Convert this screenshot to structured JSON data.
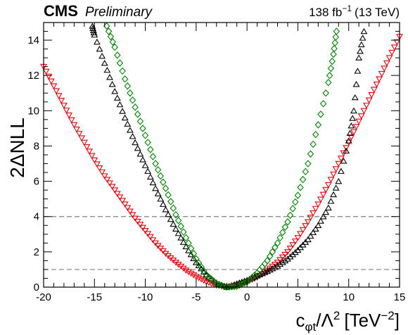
{
  "header": {
    "experiment": "CMS",
    "status": "Preliminary",
    "lumi_value": "138 fb",
    "lumi_exponent": "−1",
    "energy": "(13 TeV)"
  },
  "chart_data": {
    "type": "scatter",
    "xlabel_base": "c",
    "xlabel_sub": "φt",
    "xlabel_slash": "/Λ",
    "xlabel_sup": "2",
    "xlabel_unit": "[TeV",
    "xlabel_unit_sup": "−2",
    "xlabel_unit_close": "]",
    "ylabel": "2ΔNLL",
    "xlim": [
      -20,
      15
    ],
    "ylim": [
      0,
      15
    ],
    "xticks": [
      -20,
      -15,
      -10,
      -5,
      0,
      5,
      10,
      15
    ],
    "yticks": [
      0,
      2,
      4,
      6,
      8,
      10,
      12,
      14
    ],
    "reference_lines": [
      1,
      4
    ],
    "series": [
      {
        "marker": "triangle-down",
        "color": "#e8000b",
        "x": [
          -20,
          -19,
          -18,
          -17,
          -16,
          -15,
          -14,
          -13,
          -12,
          -11,
          -10,
          -9,
          -8,
          -7,
          -6,
          -5,
          -4,
          -3,
          -2,
          -1,
          0,
          1,
          2,
          3,
          4,
          5,
          6,
          7,
          8,
          9,
          10,
          11,
          12,
          13,
          14,
          15
        ],
        "y": [
          12.5,
          11.4,
          10.3,
          9.2,
          8.2,
          7.2,
          6.3,
          5.5,
          4.7,
          3.9,
          3.2,
          2.5,
          1.9,
          1.4,
          0.95,
          0.6,
          0.3,
          0.1,
          0.0,
          0.1,
          0.3,
          0.55,
          0.95,
          1.4,
          2.0,
          2.8,
          3.7,
          4.7,
          5.8,
          7.0,
          8.2,
          9.4,
          10.6,
          11.8,
          13.0,
          14.2
        ]
      },
      {
        "marker": "triangle-up",
        "color": "#000000",
        "x": [
          -15.2,
          -15,
          -14,
          -13,
          -12,
          -11,
          -10,
          -9,
          -8,
          -7,
          -6,
          -5,
          -4,
          -3,
          -2,
          -1,
          0,
          1,
          2,
          3,
          4,
          5,
          6,
          7,
          8,
          9,
          10,
          10.5,
          11,
          11.5
        ],
        "y": [
          14.8,
          14.3,
          12.7,
          11.1,
          9.6,
          8.2,
          6.9,
          5.6,
          4.4,
          3.3,
          2.3,
          1.4,
          0.7,
          0.25,
          0.0,
          0.2,
          0.4,
          0.65,
          0.9,
          1.2,
          1.6,
          2.1,
          2.7,
          3.5,
          4.5,
          6.0,
          8.3,
          10.0,
          13.0,
          14.5
        ]
      },
      {
        "marker": "diamond",
        "color": "#008000",
        "x": [
          -13.8,
          -13,
          -12,
          -11,
          -10,
          -9,
          -8,
          -7,
          -6,
          -5,
          -4,
          -3,
          -2,
          -1,
          0,
          1,
          2,
          3,
          4,
          5,
          6,
          7,
          8,
          8.5,
          8.8
        ],
        "y": [
          14.8,
          13.6,
          11.8,
          10.2,
          8.6,
          7.0,
          5.6,
          4.1,
          2.8,
          1.6,
          0.7,
          0.2,
          0.0,
          0.05,
          0.3,
          0.8,
          1.5,
          2.5,
          3.7,
          5.2,
          7.0,
          9.2,
          11.6,
          13.2,
          14.5
        ]
      }
    ]
  }
}
